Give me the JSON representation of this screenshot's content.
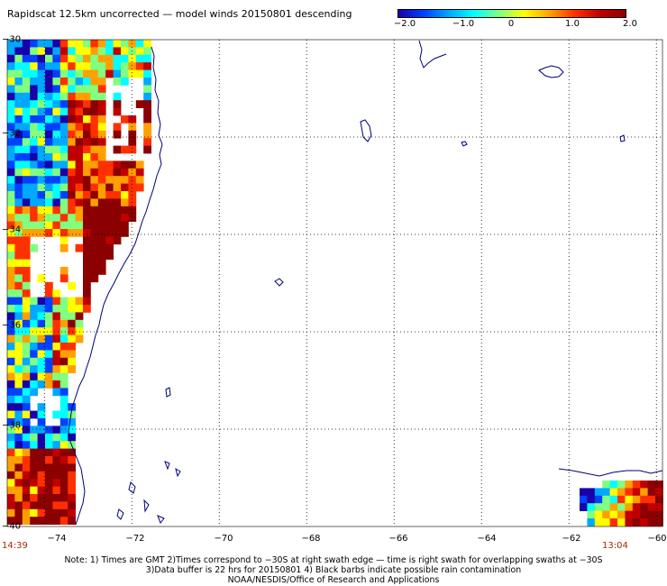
{
  "title": "Rapidscat 12.5km uncorrected — model winds 20150801 descending",
  "colorbar": {
    "colors": [
      "#1a00a8",
      "#0040ff",
      "#00a8ff",
      "#00ffff",
      "#80ff80",
      "#ffff00",
      "#ffa000",
      "#ff3000",
      "#c00000",
      "#8b0000"
    ],
    "ticks": [
      "−2.0",
      "−1.0",
      "0",
      "1.0",
      "2.0"
    ],
    "range": [
      -2.0,
      2.0
    ]
  },
  "axes": {
    "lon_ticks": [
      "−74",
      "−72",
      "−70",
      "−68",
      "−66",
      "−64",
      "−62",
      "−60"
    ],
    "lat_ticks": [
      "−30",
      "−32",
      "−34",
      "−36",
      "−38",
      "−40"
    ],
    "lon_range": [
      -75,
      -60
    ],
    "lat_range": [
      -40,
      -30
    ],
    "grid": "dotted"
  },
  "times": {
    "left": "14:39",
    "right": "13:04"
  },
  "notes": [
    "Note: 1) Times are GMT 2)Times correspond to −30S at right swath edge — time is right swath for overlapping swaths at −30S",
    "3)Data buffer is 22 hrs for 20150801 4) Black barbs indicate possible rain contamination",
    "NOAA/NESDIS/Office of Research and Applications"
  ],
  "colors": {
    "coast": "#00007a",
    "time_text": "#a42a00"
  }
}
